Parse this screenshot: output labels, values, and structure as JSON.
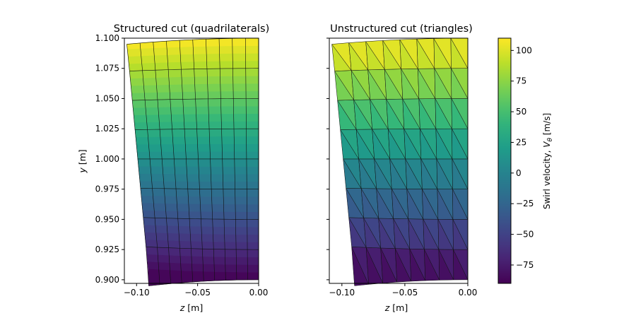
{
  "chart_data": [
    {
      "type": "heatmap",
      "title": "Structured cut (quadrilaterals)",
      "mesh": "quadrilaterals",
      "xlabel": "z [m]",
      "xlabel_parts": {
        "var": "z",
        "unit": " [m]"
      },
      "ylabel": "y [m]",
      "ylabel_parts": {
        "var": "y",
        "unit": " [m]"
      },
      "xlim": [
        -0.11,
        0.0
      ],
      "ylim": [
        0.897,
        1.1
      ],
      "xticks": [
        -0.1,
        -0.05,
        0.0
      ],
      "xtick_labels": [
        "−0.10",
        "−0.05",
        "0.00"
      ],
      "yticks": [
        0.9,
        0.925,
        0.95,
        0.975,
        1.0,
        1.025,
        1.05,
        1.075,
        1.1
      ],
      "ytick_labels": [
        "0.900",
        "0.925",
        "0.950",
        "0.975",
        "1.000",
        "1.025",
        "1.050",
        "1.075",
        "1.100"
      ],
      "domain": {
        "z_range": [
          -0.09,
          0.0
        ],
        "y_range": [
          0.9,
          1.1
        ],
        "bottom_left_z": -0.09,
        "top_left_z": -0.108
      },
      "grid_cells": {
        "columns": 10,
        "rows": 8
      },
      "field": "swirl velocity, linear in y",
      "value_at_y_min": -90,
      "value_at_y_max": 110
    },
    {
      "type": "heatmap",
      "title": "Unstructured cut (triangles)",
      "mesh": "triangles",
      "xlabel": "z [m]",
      "xlabel_parts": {
        "var": "z",
        "unit": " [m]"
      },
      "xlim": [
        -0.11,
        0.0
      ],
      "ylim": [
        0.897,
        1.1
      ],
      "xticks": [
        -0.1,
        -0.05,
        0.0
      ],
      "xtick_labels": [
        "−0.10",
        "−0.05",
        "0.00"
      ],
      "yticks": [
        0.9,
        0.925,
        0.95,
        0.975,
        1.0,
        1.025,
        1.05,
        1.075,
        1.1
      ],
      "domain": {
        "z_range": [
          -0.09,
          0.0
        ],
        "y_range": [
          0.9,
          1.1
        ],
        "bottom_left_z": -0.09,
        "top_left_z": -0.108
      },
      "grid_cells": {
        "columns": 8,
        "rows": 8
      },
      "field": "swirl velocity, piecewise constant per triangle",
      "value_at_y_min": -90,
      "value_at_y_max": 110
    }
  ],
  "colorbar": {
    "label": "Swirl velocity, Vθ [m/s]",
    "label_parts": {
      "prefix": "Swirl velocity, ",
      "var": "V",
      "sub": "θ",
      "unit": " [m/s]"
    },
    "colormap": "viridis",
    "range": [
      -90,
      110
    ],
    "ticks": [
      -75,
      -50,
      -25,
      0,
      25,
      50,
      75,
      100
    ],
    "tick_labels": [
      "−75",
      "−50",
      "−25",
      "0",
      "25",
      "50",
      "75",
      "100"
    ]
  }
}
